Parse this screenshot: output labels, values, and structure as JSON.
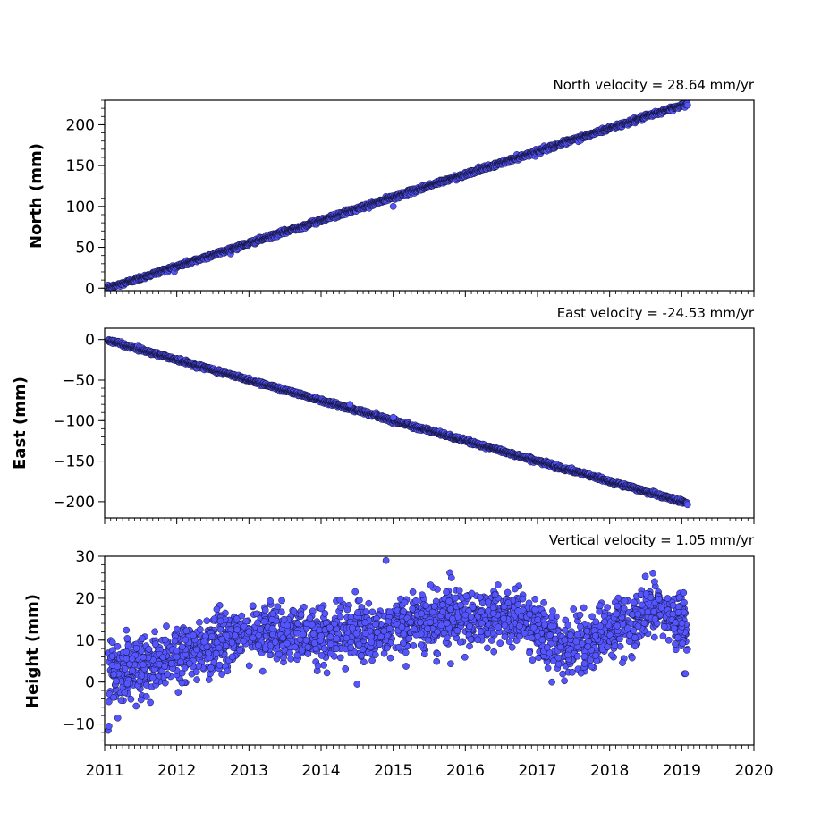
{
  "chart_data": [
    {
      "type": "scatter",
      "title": "North velocity = 28.64 mm/yr",
      "ylabel": "North (mm)",
      "xlim": [
        2011,
        2020
      ],
      "ylim": [
        -3,
        230
      ],
      "xticks": [
        2011,
        2012,
        2013,
        2014,
        2015,
        2016,
        2017,
        2018,
        2019,
        2020
      ],
      "yticks": [
        0,
        50,
        100,
        150,
        200
      ],
      "ytick_labels": [
        "0",
        "50",
        "100",
        "150",
        "200"
      ],
      "point_color": "#5555ff",
      "edge_color": "#111133",
      "trend": {
        "x_start": 2011.05,
        "x_end": 2019.08,
        "y_start": 0,
        "y_end": 226
      },
      "outliers": [
        {
          "x": 2015.0,
          "y": 100
        }
      ],
      "series": [
        {
          "x": [
            2011.05,
            2012.0,
            2013.0,
            2014.0,
            2015.0,
            2016.0,
            2017.0,
            2018.0,
            2019.0,
            2019.08
          ],
          "y": [
            0,
            27,
            55,
            84,
            110,
            139,
            168,
            196,
            222,
            226
          ]
        }
      ]
    },
    {
      "type": "scatter",
      "title": "East velocity = -24.53 mm/yr",
      "ylabel": "East (mm)",
      "xlim": [
        2011,
        2020
      ],
      "ylim": [
        -220,
        14
      ],
      "xticks": [
        2011,
        2012,
        2013,
        2014,
        2015,
        2016,
        2017,
        2018,
        2019,
        2020
      ],
      "yticks": [
        0,
        -50,
        -100,
        -150,
        -200
      ],
      "ytick_labels": [
        "0",
        "−50",
        "−100",
        "−150",
        "−200"
      ],
      "point_color": "#5555ff",
      "edge_color": "#111133",
      "trend": {
        "x_start": 2011.05,
        "x_end": 2019.08,
        "y_start": -1,
        "y_end": -202
      },
      "outliers": [
        {
          "x": 2014.4,
          "y": -80
        },
        {
          "x": 2015.0,
          "y": -96
        }
      ],
      "series": [
        {
          "x": [
            2011.05,
            2012.0,
            2013.0,
            2014.0,
            2015.0,
            2016.0,
            2017.0,
            2018.0,
            2019.0,
            2019.08
          ],
          "y": [
            -1,
            -27,
            -53,
            -76,
            -102,
            -124,
            -149,
            -176,
            -198,
            -202
          ]
        }
      ]
    },
    {
      "type": "scatter",
      "title": "Vertical velocity = 1.05 mm/yr",
      "ylabel": "Height (mm)",
      "xlim": [
        2011,
        2020
      ],
      "ylim": [
        -15,
        30
      ],
      "xticks": [
        2011,
        2012,
        2013,
        2014,
        2015,
        2016,
        2017,
        2018,
        2019,
        2020
      ],
      "xtick_labels": [
        "2011",
        "2012",
        "2013",
        "2014",
        "2015",
        "2016",
        "2017",
        "2018",
        "2019",
        "2020"
      ],
      "yticks": [
        -10,
        0,
        10,
        20,
        30
      ],
      "ytick_labels": [
        "−10",
        "0",
        "10",
        "20",
        "30"
      ],
      "point_color": "#5555ff",
      "edge_color": "#111133",
      "x_range": [
        2011.05,
        2019.08
      ],
      "noise_sd": 3.3,
      "trend_knots": {
        "x": [
          2011.0,
          2012.0,
          2013.0,
          2014.0,
          2015.0,
          2016.0,
          2016.8,
          2017.4,
          2018.0,
          2018.6,
          2019.1
        ],
        "y": [
          2,
          6,
          12,
          11,
          13,
          16,
          15,
          8,
          12,
          18,
          13
        ]
      },
      "series": [
        {
          "x": [
            2011.05,
            2011.06,
            2012.0,
            2013.0,
            2014.0,
            2014.5,
            2014.9,
            2016.0,
            2017.2,
            2018.6,
            2019.05
          ],
          "y": [
            -11.5,
            -10.5,
            6,
            12,
            11,
            -0.5,
            29,
            16,
            0,
            26,
            2
          ]
        }
      ]
    }
  ]
}
